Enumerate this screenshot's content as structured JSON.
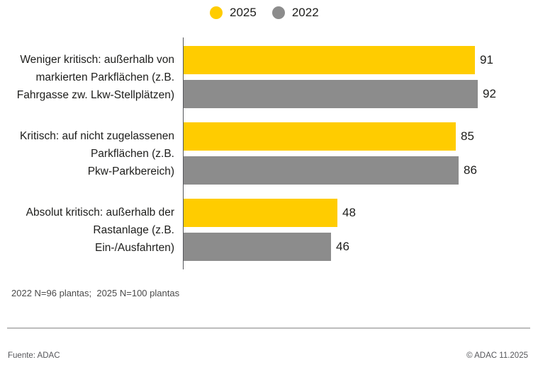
{
  "legend": {
    "items": [
      {
        "label": "2025",
        "color": "#FFCC00"
      },
      {
        "label": "2022",
        "color": "#8C8C8C"
      }
    ]
  },
  "chart_data": {
    "type": "bar",
    "orientation": "horizontal",
    "title": "",
    "categories": [
      "Weniger kritisch: außerhalb von markierten Parkflächen (z.B. Fahrgasse zw. Lkw-Stellplätzen)",
      "Kritisch: auf nicht zugelassenen Parkflächen (z.B. Pkw-Parkbereich)",
      "Absolut kritisch: außerhalb der Rastanlage (z.B. Ein-/Ausfahrten)"
    ],
    "category_lines": [
      [
        "Weniger kritisch: außerhalb von",
        "markierten Parkflächen (z.B.",
        "Fahrgasse zw. Lkw-Stellplätzen)"
      ],
      [
        "Kritisch: auf nicht zugelassenen",
        "Parkflächen (z.B.",
        "Pkw-Parkbereich)"
      ],
      [
        "Absolut kritisch: außerhalb der",
        "Rastanlage (z.B.",
        "Ein-/Ausfahrten)"
      ]
    ],
    "series": [
      {
        "name": "2025",
        "color": "#FFCC00",
        "values": [
          91,
          85,
          48
        ]
      },
      {
        "name": "2022",
        "color": "#8C8C8C",
        "values": [
          92,
          86,
          46
        ]
      }
    ],
    "value_labels": true,
    "xlim": [
      0,
      100
    ],
    "grid": false,
    "legend_position": "top-center"
  },
  "footnote": "2022 N=96 plantas;  2025 N=100 plantas",
  "footer": {
    "source": "Fuente: ADAC",
    "copyright": "© ADAC 11.2025"
  }
}
